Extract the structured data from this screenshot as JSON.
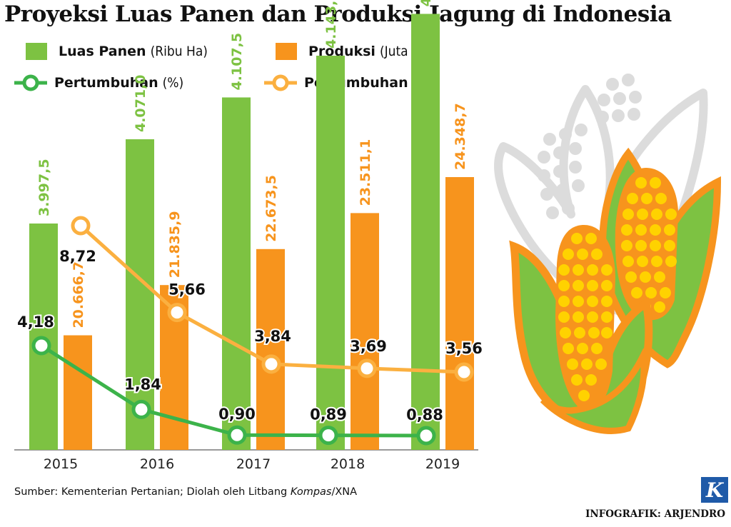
{
  "title": "Proyeksi Luas Panen dan Produksi Jagung di Indonesia",
  "legend": {
    "luas": {
      "bold": "Luas Panen",
      "unit": "(Ribu Ha)"
    },
    "produksi": {
      "bold": "Produksi",
      "unit": "(Juta Ton)"
    },
    "growth_luas": {
      "bold": "Pertumbuhan",
      "unit": "(%)"
    },
    "growth_produksi": {
      "bold": "Pertumbuhan",
      "unit": "(%)"
    }
  },
  "colors": {
    "green": "#7dc242",
    "orange": "#f7941d",
    "line_green": "#3cb34a",
    "line_orange": "#fbb040"
  },
  "chart_data": {
    "type": "bar",
    "categories": [
      "2015",
      "2016",
      "2017",
      "2018",
      "2019"
    ],
    "series": [
      {
        "name": "Luas Panen (Ribu Ha)",
        "kind": "bar",
        "values": [
          3997.5,
          4071.0,
          4107.5,
          4143.9,
          4180.4
        ],
        "labels": [
          "3.997,5",
          "4.071,0",
          "4.107,5",
          "4.143,9",
          "4.180,4"
        ]
      },
      {
        "name": "Produksi (Juta Ton)",
        "kind": "bar",
        "values": [
          20666.7,
          21835.9,
          22673.5,
          23511.1,
          24348.7
        ],
        "labels": [
          "20.666,7",
          "21.835,9",
          "22.673,5",
          "23.511,1",
          "24.348,7"
        ]
      },
      {
        "name": "Pertumbuhan (%)",
        "kind": "line",
        "of": "Luas Panen",
        "values": [
          4.18,
          1.84,
          0.9,
          0.89,
          0.88
        ],
        "labels": [
          "4,18",
          "1,84",
          "0,90",
          "0,89",
          "0,88"
        ]
      },
      {
        "name": "Pertumbuhan (%)",
        "kind": "line",
        "of": "Produksi",
        "values": [
          8.72,
          5.66,
          3.84,
          3.69,
          3.56
        ],
        "labels": [
          "8,72",
          "5,66",
          "3,84",
          "3,69",
          "3,56"
        ]
      }
    ]
  },
  "source": {
    "prefix": "Sumber: Kementerian Pertanian; Diolah oleh Litbang ",
    "italic": "Kompas",
    "suffix": "/XNA"
  },
  "credit": "INFOGRAFIK: ARJENDRO",
  "logo_letter": "K"
}
